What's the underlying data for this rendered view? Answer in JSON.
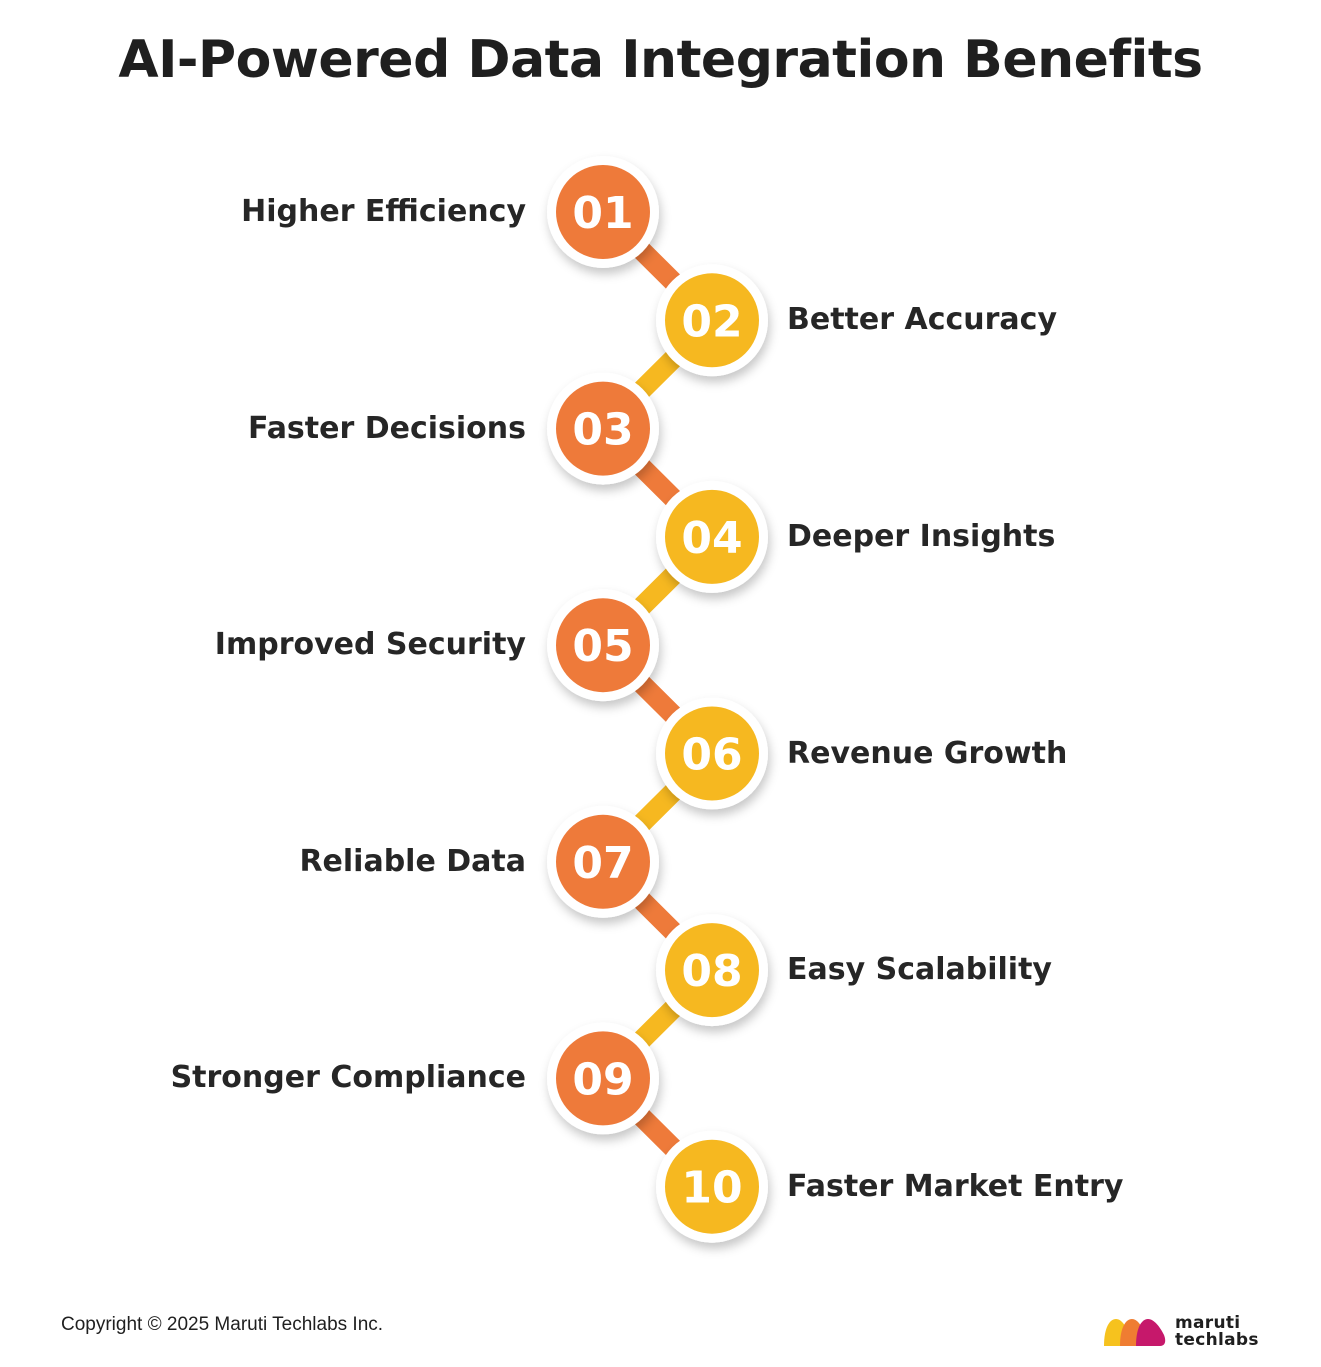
{
  "title": "AI-Powered Data Integration Benefits",
  "colors": {
    "orange": "#ee7a3a",
    "yellow": "#f6b820",
    "ring": "#ffffff",
    "text": "#262626"
  },
  "steps": [
    {
      "number": "01",
      "label": "Higher Efficiency",
      "side": "left",
      "color": "orange"
    },
    {
      "number": "02",
      "label": "Better Accuracy",
      "side": "right",
      "color": "yellow"
    },
    {
      "number": "03",
      "label": "Faster Decisions",
      "side": "left",
      "color": "orange"
    },
    {
      "number": "04",
      "label": "Deeper Insights",
      "side": "right",
      "color": "yellow"
    },
    {
      "number": "05",
      "label": "Improved Security",
      "side": "left",
      "color": "orange"
    },
    {
      "number": "06",
      "label": "Revenue Growth",
      "side": "right",
      "color": "yellow"
    },
    {
      "number": "07",
      "label": "Reliable Data",
      "side": "left",
      "color": "orange"
    },
    {
      "number": "08",
      "label": "Easy Scalability",
      "side": "right",
      "color": "yellow"
    },
    {
      "number": "09",
      "label": "Stronger Compliance",
      "side": "left",
      "color": "orange"
    },
    {
      "number": "10",
      "label": "Faster Market Entry",
      "side": "right",
      "color": "yellow"
    }
  ],
  "footer": {
    "copyright": "Copyright © 2025 Maruti Techlabs Inc.",
    "brand_line1": "maruti",
    "brand_line2": "techlabs",
    "brand_icon": "maruti-techlabs-logo-icon"
  }
}
